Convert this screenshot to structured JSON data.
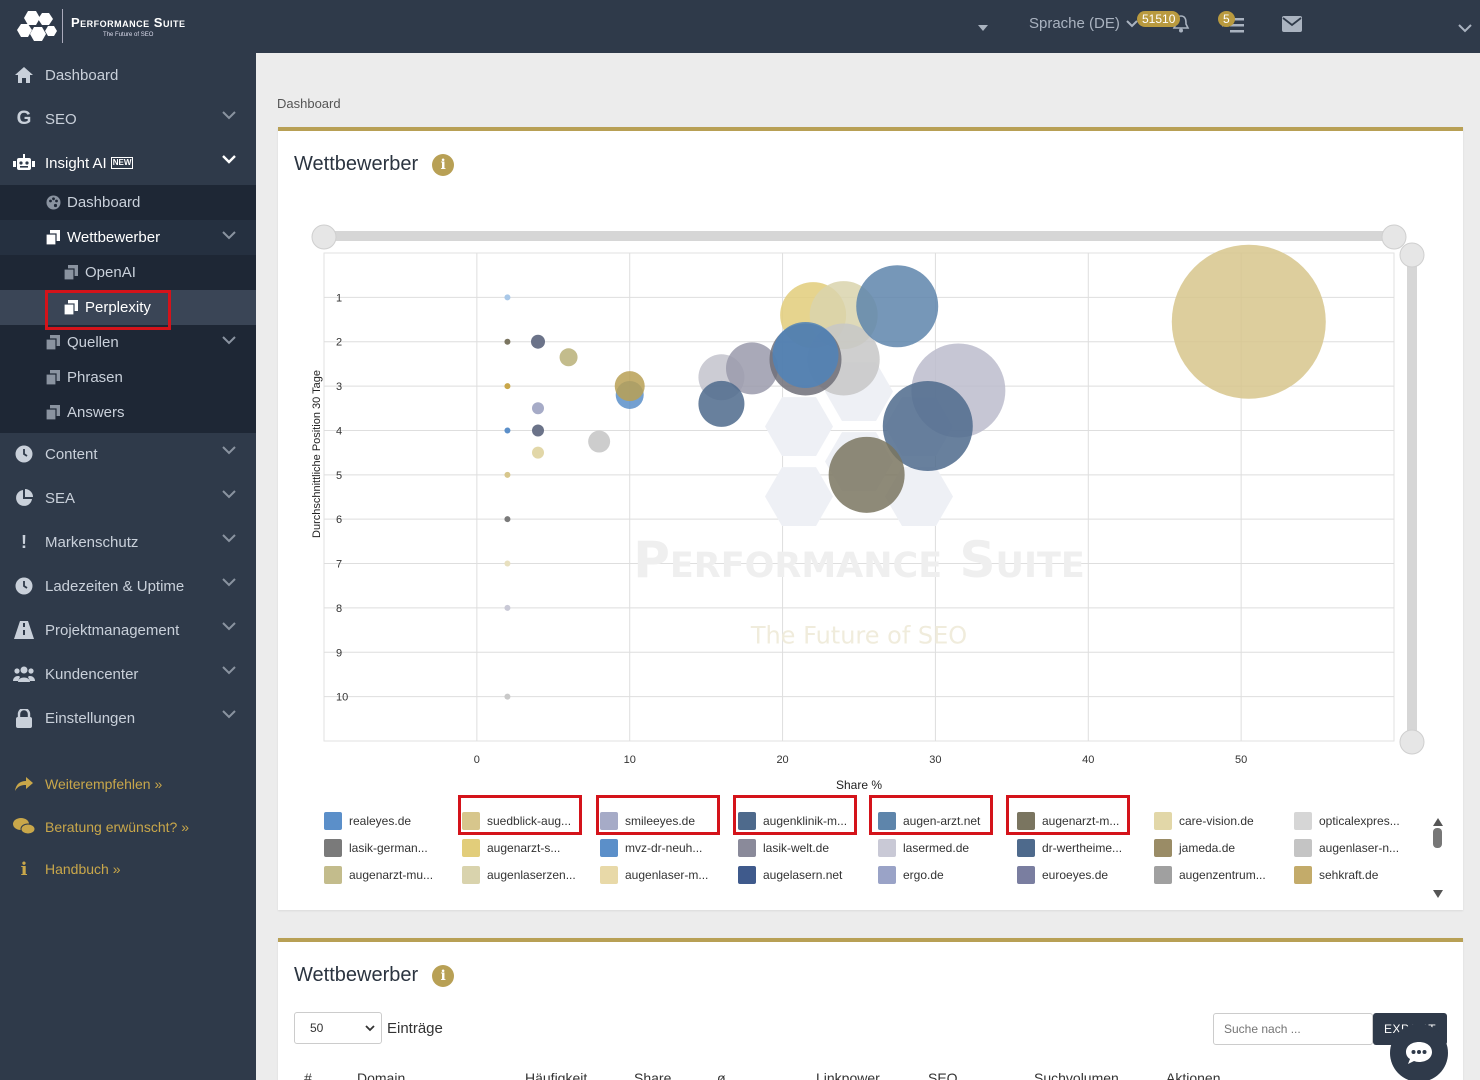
{
  "app": {
    "logo_title": "Performance Suite",
    "logo_subtitle": "The Future of SEO"
  },
  "topbar": {
    "language": "Sprache (DE)",
    "credits_badge": "51510",
    "notifications_badge": "5"
  },
  "sidebar": {
    "items": [
      {
        "label": "Dashboard",
        "icon": "home-icon"
      },
      {
        "label": "SEO",
        "icon": "google-icon"
      },
      {
        "label": "Insight AI",
        "icon": "robot-icon",
        "badge": "NEW"
      },
      {
        "label": "Content",
        "icon": "clock-icon"
      },
      {
        "label": "SEA",
        "icon": "pie-icon"
      },
      {
        "label": "Markenschutz",
        "icon": "exclamation-icon"
      },
      {
        "label": "Ladezeiten & Uptime",
        "icon": "clock-icon"
      },
      {
        "label": "Projektmanagement",
        "icon": "road-icon"
      },
      {
        "label": "Kundencenter",
        "icon": "users-icon"
      },
      {
        "label": "Einstellungen",
        "icon": "lock-icon"
      }
    ],
    "sub": {
      "dashboard": "Dashboard",
      "wettbewerber": "Wettbewerber",
      "openai": "OpenAI",
      "perplexity": "Perplexity",
      "quellen": "Quellen",
      "phrasen": "Phrasen",
      "answers": "Answers"
    },
    "links": [
      {
        "label": "Weiterempfehlen »",
        "icon": "share-icon"
      },
      {
        "label": "Beratung erwünscht? »",
        "icon": "chat-icon"
      },
      {
        "label": "Handbuch »",
        "icon": "info-icon"
      }
    ]
  },
  "breadcrumb": "Dashboard",
  "chart_card": {
    "title": "Wettbewerber"
  },
  "chart_data": {
    "type": "scatter",
    "title": "",
    "xlabel": "Share %",
    "ylabel": "Durchschnittliche Position 30 Tage",
    "xlim": [
      -10,
      60
    ],
    "ylim": [
      0,
      11
    ],
    "y_reversed": true,
    "x_ticks": [
      0,
      10,
      20,
      30,
      40,
      50
    ],
    "y_ticks": [
      1,
      2,
      3,
      4,
      5,
      6,
      7,
      8,
      9,
      10
    ],
    "grid": true,
    "legend_position": "bottom",
    "watermark": "Performance Suite",
    "watermark_sub": "The Future of SEO",
    "points": [
      {
        "x": 2,
        "y": 1,
        "r": 3,
        "color": "#a9c8e8"
      },
      {
        "x": 2,
        "y": 2,
        "r": 3,
        "color": "#7a7560"
      },
      {
        "x": 4,
        "y": 2,
        "r": 7,
        "color": "#6b7389"
      },
      {
        "x": 6,
        "y": 2.35,
        "r": 9,
        "color": "#c3bc8c"
      },
      {
        "x": 2,
        "y": 3,
        "r": 3,
        "color": "#c9a74a"
      },
      {
        "x": 4,
        "y": 3.5,
        "r": 6,
        "color": "#a6abc7"
      },
      {
        "x": 2,
        "y": 4,
        "r": 3,
        "color": "#5b8fc9"
      },
      {
        "x": 4,
        "y": 4,
        "r": 6,
        "color": "#6b7389"
      },
      {
        "x": 4,
        "y": 4.5,
        "r": 6,
        "color": "#e2d7a8"
      },
      {
        "x": 8,
        "y": 4.25,
        "r": 11,
        "color": "#c4c4c4"
      },
      {
        "x": 2,
        "y": 5,
        "r": 3,
        "color": "#d7c68c"
      },
      {
        "x": 2,
        "y": 6,
        "r": 3,
        "color": "#7a7a7a"
      },
      {
        "x": 2,
        "y": 7,
        "r": 3,
        "color": "#e8e0bf"
      },
      {
        "x": 2,
        "y": 8,
        "r": 3,
        "color": "#c9c9d6"
      },
      {
        "x": 2,
        "y": 10,
        "r": 3,
        "color": "#c9c9c9"
      },
      {
        "x": 10,
        "y": 3.2,
        "r": 14,
        "color": "#5b8fc9"
      },
      {
        "x": 10,
        "y": 3,
        "r": 15,
        "color": "#b8a055"
      },
      {
        "x": 16,
        "y": 2.8,
        "r": 23,
        "color": "#c3c3cc"
      },
      {
        "x": 18,
        "y": 2.6,
        "r": 26,
        "color": "#9a9aab"
      },
      {
        "x": 16,
        "y": 3.4,
        "r": 23,
        "color": "#4e6a8c"
      },
      {
        "x": 22,
        "y": 1.4,
        "r": 33,
        "color": "#e2cd7a"
      },
      {
        "x": 24,
        "y": 1.4,
        "r": 34,
        "color": "#d9d3ad"
      },
      {
        "x": 24,
        "y": 2.4,
        "r": 36,
        "color": "#c7c7c7"
      },
      {
        "x": 21.5,
        "y": 2.4,
        "r": 36,
        "color": "#6e6e78"
      },
      {
        "x": 21.5,
        "y": 2.3,
        "r": 33,
        "color": "#4f82b8"
      },
      {
        "x": 27.5,
        "y": 1.2,
        "r": 41,
        "color": "#5e85ab"
      },
      {
        "x": 31.5,
        "y": 3.1,
        "r": 47,
        "color": "#bcbccc"
      },
      {
        "x": 29.5,
        "y": 3.9,
        "r": 45,
        "color": "#4e6a8c"
      },
      {
        "x": 25.5,
        "y": 5,
        "r": 38,
        "color": "#7a7560"
      },
      {
        "x": 50.5,
        "y": 1.55,
        "r": 77,
        "color": "#d7c68c"
      }
    ]
  },
  "legend": [
    {
      "label": "realeyes.de",
      "color": "#5b8fc9"
    },
    {
      "label": "suedblick-aug...",
      "color": "#d7c68c"
    },
    {
      "label": "smileeyes.de",
      "color": "#a6abc7"
    },
    {
      "label": "augenklinik-m...",
      "color": "#4e6a8c"
    },
    {
      "label": "augen-arzt.net",
      "color": "#5e85ab"
    },
    {
      "label": "augenarzt-m...",
      "color": "#7a7560"
    },
    {
      "label": "care-vision.de",
      "color": "#e2d7a8"
    },
    {
      "label": "opticalexpres...",
      "color": "#d6d6d6"
    },
    {
      "label": "lasik-german...",
      "color": "#7a7a7a"
    },
    {
      "label": "augenarzt-s...",
      "color": "#e2cd7a"
    },
    {
      "label": "mvz-dr-neuh...",
      "color": "#5b8fc9"
    },
    {
      "label": "lasik-welt.de",
      "color": "#8a8a9a"
    },
    {
      "label": "lasermed.de",
      "color": "#c9c9d6"
    },
    {
      "label": "dr-wertheime...",
      "color": "#4e6a8c"
    },
    {
      "label": "jameda.de",
      "color": "#9a8c66"
    },
    {
      "label": "augenlaser-n...",
      "color": "#c4c4c4"
    },
    {
      "label": "augenarzt-mu...",
      "color": "#c3bc8c"
    },
    {
      "label": "augenlaserzen...",
      "color": "#d9d3ad"
    },
    {
      "label": "augenlaser-m...",
      "color": "#e8d9a8"
    },
    {
      "label": "augelasern.net",
      "color": "#3f5a8c"
    },
    {
      "label": "ergo.de",
      "color": "#9aa3c7"
    },
    {
      "label": "euroeyes.de",
      "color": "#7a7ea0"
    },
    {
      "label": "augenzentrum...",
      "color": "#a0a0a0"
    },
    {
      "label": "sehkraft.de",
      "color": "#c3ab6a"
    }
  ],
  "table_card": {
    "title": "Wettbewerber",
    "page_size": "50",
    "entries_label": "Einträge",
    "search_placeholder": "Suche nach ...",
    "export_label": "EXPORT",
    "columns": [
      "#",
      "Domain",
      "Häufigkeit",
      "Share",
      "ø",
      "Linkpower",
      "SEO",
      "Suchvolumen",
      "Aktionen"
    ]
  }
}
